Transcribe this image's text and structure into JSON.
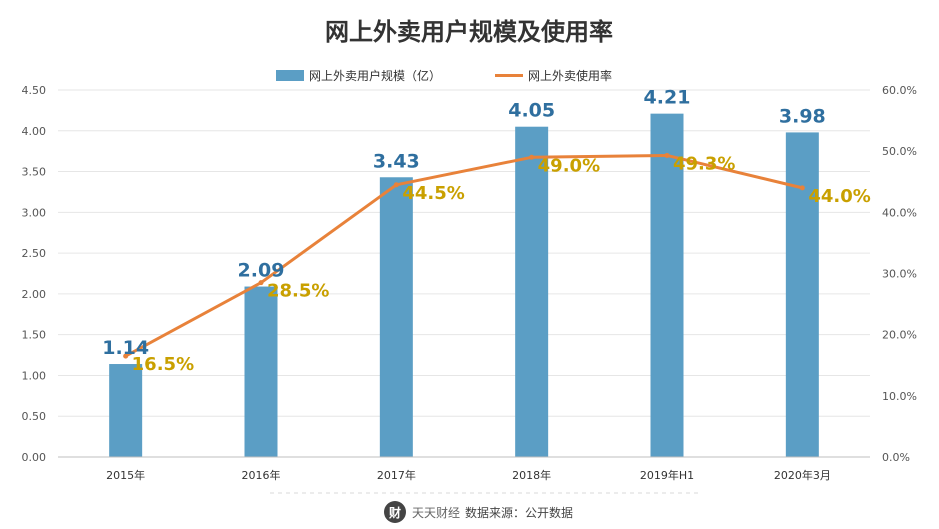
{
  "chart_data": {
    "type": "bar",
    "title": "网上外卖用户规模及使用率",
    "categories": [
      "2015年",
      "2016年",
      "2017年",
      "2018年",
      "2019年H1",
      "2020年3月"
    ],
    "series": [
      {
        "name": "网上外卖用户规模（亿）",
        "type": "bar",
        "axis": "left",
        "values": [
          1.14,
          2.09,
          3.43,
          4.05,
          4.21,
          3.98
        ]
      },
      {
        "name": "网上外卖使用率",
        "type": "line",
        "axis": "right",
        "values": [
          16.5,
          28.5,
          44.5,
          49.0,
          49.3,
          44.0
        ]
      }
    ],
    "bar_labels": [
      "1.14",
      "2.09",
      "3.43",
      "4.05",
      "4.21",
      "3.98"
    ],
    "line_labels": [
      "16.5%",
      "28.5%",
      "44.5%",
      "49.0%",
      "49.3%",
      "44.0%"
    ],
    "yaxis_left": {
      "ylim": [
        0,
        4.5
      ],
      "ticks": [
        "0.00",
        "0.50",
        "1.00",
        "1.50",
        "2.00",
        "2.50",
        "3.00",
        "3.50",
        "4.00",
        "4.50"
      ]
    },
    "yaxis_right": {
      "ylim": [
        0,
        60
      ],
      "ticks": [
        "0.0%",
        "10.0%",
        "20.0%",
        "30.0%",
        "40.0%",
        "50.0%",
        "60.0%"
      ]
    },
    "grid": true,
    "legend_position": "top-center",
    "colors": {
      "bar": "#5b9ec5",
      "line": "#e8823a",
      "bar_label": "#2f6f9f",
      "line_label": "#c9a000",
      "axis_text": "#555555",
      "grid": "#e6e6e6",
      "title": "#333333"
    }
  },
  "footer": {
    "logo_text": "天天财经",
    "source": "数据来源：公开数据"
  }
}
